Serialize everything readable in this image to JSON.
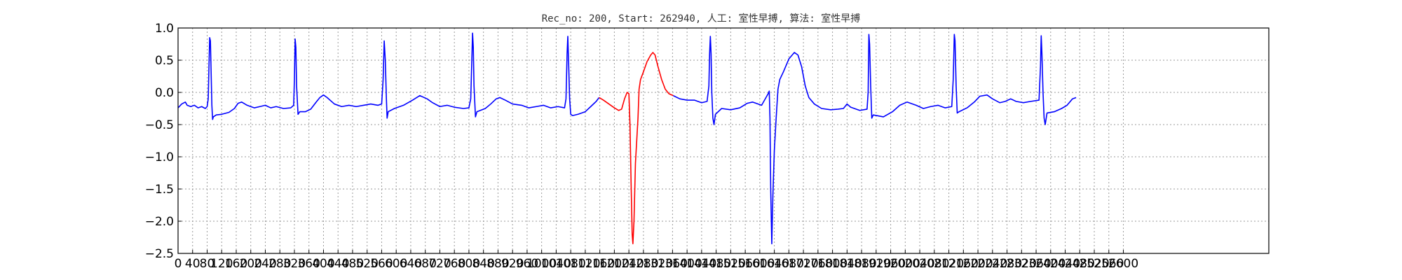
{
  "chart_data": {
    "type": "line",
    "title": "Rec_no: 200, Start: 262940, 人工: 室性早搏, 算法: 室性早搏",
    "xlabel": "",
    "ylabel": "",
    "xlim": [
      0,
      3000
    ],
    "ylim": [
      -2.5,
      1.0
    ],
    "grid": true,
    "yticks": [
      1.0,
      0.5,
      0.0,
      -0.5,
      -1.0,
      -1.5,
      -2.0,
      -2.5
    ],
    "ytick_labels": [
      "1.0",
      "0.5",
      "0.0",
      "−0.5",
      "−1.0",
      "−1.5",
      "−2.0",
      "−2.5"
    ],
    "xticks": [
      0,
      40,
      80,
      120,
      160,
      200,
      240,
      280,
      320,
      360,
      400,
      440,
      480,
      520,
      560,
      600,
      640,
      680,
      720,
      760,
      800,
      840,
      880,
      920,
      960,
      1000,
      1040,
      1080,
      1120,
      1160,
      1200,
      1240,
      1280,
      1320,
      1360,
      1400,
      1440,
      1480,
      1520,
      1560,
      1600,
      1640,
      1680,
      1720,
      1760,
      1800,
      1840,
      1880,
      1920,
      1960,
      2000,
      2040,
      2080,
      2120,
      2160,
      2200,
      2240,
      2280,
      2320,
      2360,
      2400,
      2440,
      2480,
      2520,
      2560,
      2600
    ],
    "xtick_labels": [
      "0",
      "40",
      "80",
      "120",
      "160",
      "200",
      "240",
      "280",
      "320",
      "360",
      "400",
      "440",
      "480",
      "520",
      "560",
      "600",
      "640",
      "680",
      "720",
      "760",
      "800",
      "840",
      "880",
      "920",
      "960",
      "1000",
      "1040",
      "1080",
      "1120",
      "1160",
      "1200",
      "1240",
      "1280",
      "1320",
      "1360",
      "1400",
      "1440",
      "1480",
      "1520",
      "1560",
      "1600",
      "1640",
      "1680",
      "1720",
      "1760",
      "1800",
      "1840",
      "1880",
      "1920",
      "1960",
      "2000",
      "2040",
      "2080",
      "2120",
      "2160",
      "2200",
      "2240",
      "2280",
      "2320",
      "2360",
      "2400",
      "2440",
      "2480",
      "2520",
      "2560",
      "2600"
    ],
    "colors": {
      "normal": "#0000ff",
      "highlight": "#ff0000",
      "grid": "#9a9a9a",
      "frame": "#000000"
    },
    "series": [
      {
        "color": "#0000ff",
        "points": [
          [
            0,
            -0.24
          ],
          [
            10,
            -0.18
          ],
          [
            20,
            -0.15
          ],
          [
            25,
            -0.2
          ],
          [
            35,
            -0.22
          ],
          [
            45,
            -0.2
          ],
          [
            55,
            -0.24
          ],
          [
            65,
            -0.22
          ],
          [
            75,
            -0.25
          ],
          [
            80,
            -0.22
          ],
          [
            83,
            -0.1
          ],
          [
            85,
            0.4
          ],
          [
            87,
            0.85
          ],
          [
            89,
            0.8
          ],
          [
            91,
            0.3
          ],
          [
            93,
            -0.2
          ],
          [
            95,
            -0.42
          ],
          [
            97,
            -0.38
          ],
          [
            105,
            -0.35
          ],
          [
            120,
            -0.34
          ],
          [
            140,
            -0.31
          ],
          [
            155,
            -0.25
          ],
          [
            165,
            -0.17
          ],
          [
            175,
            -0.15
          ],
          [
            190,
            -0.2
          ],
          [
            210,
            -0.24
          ],
          [
            225,
            -0.22
          ],
          [
            240,
            -0.2
          ],
          [
            255,
            -0.24
          ],
          [
            270,
            -0.22
          ],
          [
            290,
            -0.25
          ],
          [
            310,
            -0.24
          ],
          [
            318,
            -0.2
          ],
          [
            320,
            0.2
          ],
          [
            322,
            0.83
          ],
          [
            324,
            0.7
          ],
          [
            326,
            0.1
          ],
          [
            330,
            -0.34
          ],
          [
            335,
            -0.3
          ],
          [
            350,
            -0.3
          ],
          [
            365,
            -0.26
          ],
          [
            380,
            -0.15
          ],
          [
            390,
            -0.08
          ],
          [
            400,
            -0.04
          ],
          [
            410,
            -0.08
          ],
          [
            430,
            -0.18
          ],
          [
            450,
            -0.22
          ],
          [
            470,
            -0.2
          ],
          [
            490,
            -0.22
          ],
          [
            510,
            -0.2
          ],
          [
            530,
            -0.18
          ],
          [
            550,
            -0.2
          ],
          [
            560,
            -0.18
          ],
          [
            564,
            0.2
          ],
          [
            567,
            0.8
          ],
          [
            570,
            0.5
          ],
          [
            573,
            -0.1
          ],
          [
            575,
            -0.4
          ],
          [
            578,
            -0.3
          ],
          [
            595,
            -0.25
          ],
          [
            620,
            -0.2
          ],
          [
            645,
            -0.12
          ],
          [
            665,
            -0.05
          ],
          [
            685,
            -0.1
          ],
          [
            700,
            -0.16
          ],
          [
            720,
            -0.22
          ],
          [
            740,
            -0.2
          ],
          [
            760,
            -0.23
          ],
          [
            785,
            -0.25
          ],
          [
            800,
            -0.24
          ],
          [
            805,
            -0.1
          ],
          [
            808,
            0.5
          ],
          [
            810,
            0.92
          ],
          [
            812,
            0.7
          ],
          [
            814,
            0.1
          ],
          [
            818,
            -0.38
          ],
          [
            822,
            -0.3
          ],
          [
            845,
            -0.25
          ],
          [
            860,
            -0.18
          ],
          [
            875,
            -0.1
          ],
          [
            885,
            -0.08
          ],
          [
            900,
            -0.12
          ],
          [
            920,
            -0.18
          ],
          [
            945,
            -0.2
          ],
          [
            965,
            -0.24
          ],
          [
            985,
            -0.22
          ],
          [
            1005,
            -0.2
          ],
          [
            1025,
            -0.24
          ],
          [
            1045,
            -0.22
          ],
          [
            1063,
            -0.24
          ],
          [
            1067,
            -0.1
          ],
          [
            1070,
            0.6
          ],
          [
            1072,
            0.87
          ],
          [
            1074,
            0.5
          ],
          [
            1077,
            -0.1
          ],
          [
            1080,
            -0.34
          ],
          [
            1085,
            -0.36
          ],
          [
            1100,
            -0.34
          ],
          [
            1120,
            -0.3
          ],
          [
            1135,
            -0.22
          ],
          [
            1150,
            -0.14
          ],
          [
            1158,
            -0.08
          ]
        ]
      },
      {
        "color": "#ff0000",
        "points": [
          [
            1158,
            -0.08
          ],
          [
            1170,
            -0.12
          ],
          [
            1185,
            -0.18
          ],
          [
            1200,
            -0.24
          ],
          [
            1212,
            -0.28
          ],
          [
            1220,
            -0.26
          ],
          [
            1228,
            -0.1
          ],
          [
            1235,
            0.0
          ],
          [
            1240,
            -0.02
          ],
          [
            1243,
            -0.5
          ],
          [
            1246,
            -1.4
          ],
          [
            1249,
            -2.2
          ],
          [
            1251,
            -2.35
          ],
          [
            1254,
            -2.0
          ],
          [
            1258,
            -1.1
          ],
          [
            1262,
            -0.7
          ],
          [
            1265,
            -0.4
          ],
          [
            1268,
            0.05
          ],
          [
            1272,
            0.2
          ],
          [
            1280,
            0.32
          ],
          [
            1290,
            0.48
          ],
          [
            1300,
            0.58
          ],
          [
            1306,
            0.62
          ],
          [
            1312,
            0.58
          ],
          [
            1320,
            0.4
          ],
          [
            1330,
            0.2
          ],
          [
            1340,
            0.05
          ],
          [
            1350,
            -0.02
          ],
          [
            1362,
            -0.05
          ]
        ]
      },
      {
        "color": "#0000ff",
        "points": [
          [
            1362,
            -0.05
          ],
          [
            1380,
            -0.1
          ],
          [
            1400,
            -0.12
          ],
          [
            1420,
            -0.12
          ],
          [
            1440,
            -0.16
          ],
          [
            1455,
            -0.14
          ],
          [
            1460,
            0.1
          ],
          [
            1462,
            0.6
          ],
          [
            1464,
            0.87
          ],
          [
            1466,
            0.6
          ],
          [
            1468,
            0.0
          ],
          [
            1471,
            -0.4
          ],
          [
            1474,
            -0.5
          ],
          [
            1478,
            -0.34
          ],
          [
            1495,
            -0.25
          ],
          [
            1520,
            -0.27
          ],
          [
            1545,
            -0.24
          ],
          [
            1565,
            -0.17
          ],
          [
            1580,
            -0.15
          ],
          [
            1605,
            -0.2
          ],
          [
            1623,
            -0.02
          ],
          [
            1626,
            0.02
          ],
          [
            1628,
            -0.4
          ],
          [
            1630,
            -1.5
          ],
          [
            1633,
            -2.35
          ],
          [
            1636,
            -1.6
          ],
          [
            1640,
            -0.9
          ],
          [
            1645,
            -0.4
          ],
          [
            1650,
            0.05
          ],
          [
            1655,
            0.2
          ],
          [
            1665,
            0.32
          ],
          [
            1680,
            0.52
          ],
          [
            1695,
            0.62
          ],
          [
            1705,
            0.58
          ],
          [
            1715,
            0.4
          ],
          [
            1725,
            0.1
          ],
          [
            1735,
            -0.08
          ],
          [
            1750,
            -0.18
          ],
          [
            1770,
            -0.25
          ],
          [
            1795,
            -0.27
          ],
          [
            1815,
            -0.26
          ],
          [
            1830,
            -0.25
          ],
          [
            1840,
            -0.18
          ],
          [
            1850,
            -0.23
          ],
          [
            1875,
            -0.28
          ],
          [
            1895,
            -0.26
          ],
          [
            1898,
            0.0
          ],
          [
            1900,
            0.9
          ],
          [
            1902,
            0.75
          ],
          [
            1905,
            0.1
          ],
          [
            1908,
            -0.4
          ],
          [
            1912,
            -0.35
          ],
          [
            1940,
            -0.38
          ],
          [
            1965,
            -0.3
          ],
          [
            1985,
            -0.2
          ],
          [
            2005,
            -0.15
          ],
          [
            2030,
            -0.2
          ],
          [
            2050,
            -0.25
          ],
          [
            2070,
            -0.22
          ],
          [
            2090,
            -0.2
          ],
          [
            2110,
            -0.24
          ],
          [
            2128,
            -0.22
          ],
          [
            2132,
            0.2
          ],
          [
            2135,
            0.9
          ],
          [
            2137,
            0.8
          ],
          [
            2140,
            0.1
          ],
          [
            2143,
            -0.32
          ],
          [
            2148,
            -0.3
          ],
          [
            2170,
            -0.24
          ],
          [
            2190,
            -0.15
          ],
          [
            2205,
            -0.06
          ],
          [
            2225,
            -0.04
          ],
          [
            2240,
            -0.1
          ],
          [
            2260,
            -0.16
          ],
          [
            2275,
            -0.14
          ],
          [
            2290,
            -0.1
          ],
          [
            2305,
            -0.14
          ],
          [
            2325,
            -0.16
          ],
          [
            2345,
            -0.14
          ],
          [
            2368,
            -0.12
          ],
          [
            2372,
            0.4
          ],
          [
            2374,
            0.88
          ],
          [
            2376,
            0.6
          ],
          [
            2379,
            0.0
          ],
          [
            2382,
            -0.4
          ],
          [
            2385,
            -0.5
          ],
          [
            2390,
            -0.32
          ],
          [
            2410,
            -0.3
          ],
          [
            2430,
            -0.25
          ],
          [
            2445,
            -0.2
          ],
          [
            2460,
            -0.1
          ],
          [
            2470,
            -0.08
          ]
        ]
      }
    ]
  }
}
